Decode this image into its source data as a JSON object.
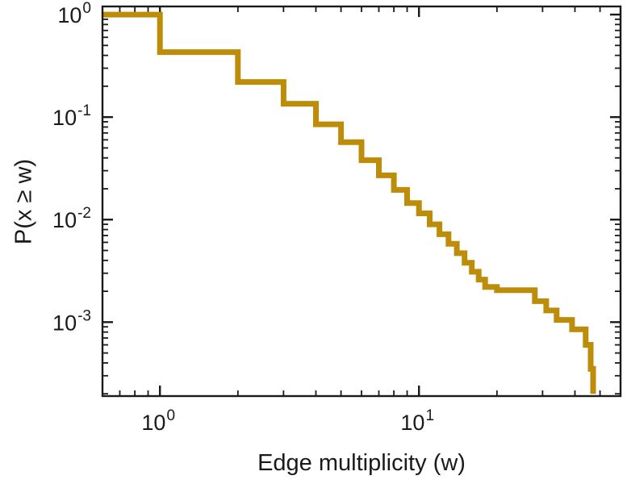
{
  "figure": {
    "background": "#ffffff",
    "axis_color": "#1a1a1a"
  },
  "chart_data": {
    "type": "line",
    "subtype": "step-ccdf",
    "title": "",
    "xlabel": "Edge multiplicity (w)",
    "ylabel": "P(x ≥ w)",
    "x_scale": "log",
    "y_scale": "log",
    "xlim": [
      0.6,
      60
    ],
    "ylim": [
      0.00019,
      1.2
    ],
    "x_major_ticks": [
      1,
      10
    ],
    "x_major_tick_labels": [
      "10^0",
      "10^1"
    ],
    "y_major_ticks": [
      1,
      0.1,
      0.01,
      0.001
    ],
    "y_major_tick_labels": [
      "10^0",
      "10^-1",
      "10^-2",
      "10^-3"
    ],
    "grid": false,
    "legend": false,
    "line_color": "#BD8D0A",
    "line_width": 7,
    "start_value": 1.0,
    "steps": [
      [
        1,
        0.43
      ],
      [
        2,
        0.22
      ],
      [
        3,
        0.135
      ],
      [
        4,
        0.085
      ],
      [
        5,
        0.057
      ],
      [
        6,
        0.038
      ],
      [
        7,
        0.027
      ],
      [
        8,
        0.0195
      ],
      [
        9,
        0.0145
      ],
      [
        10,
        0.0115
      ],
      [
        11,
        0.009
      ],
      [
        12,
        0.0072
      ],
      [
        13,
        0.0058
      ],
      [
        14,
        0.0047
      ],
      [
        15,
        0.0038
      ],
      [
        16,
        0.0031
      ],
      [
        17,
        0.0026
      ],
      [
        18,
        0.0022
      ],
      [
        20,
        0.00205
      ],
      [
        28,
        0.0016
      ],
      [
        31,
        0.0013
      ],
      [
        34,
        0.00105
      ],
      [
        39,
        0.00085
      ],
      [
        44,
        0.0006
      ],
      [
        46,
        0.00035
      ],
      [
        47,
        0.0002
      ]
    ]
  }
}
